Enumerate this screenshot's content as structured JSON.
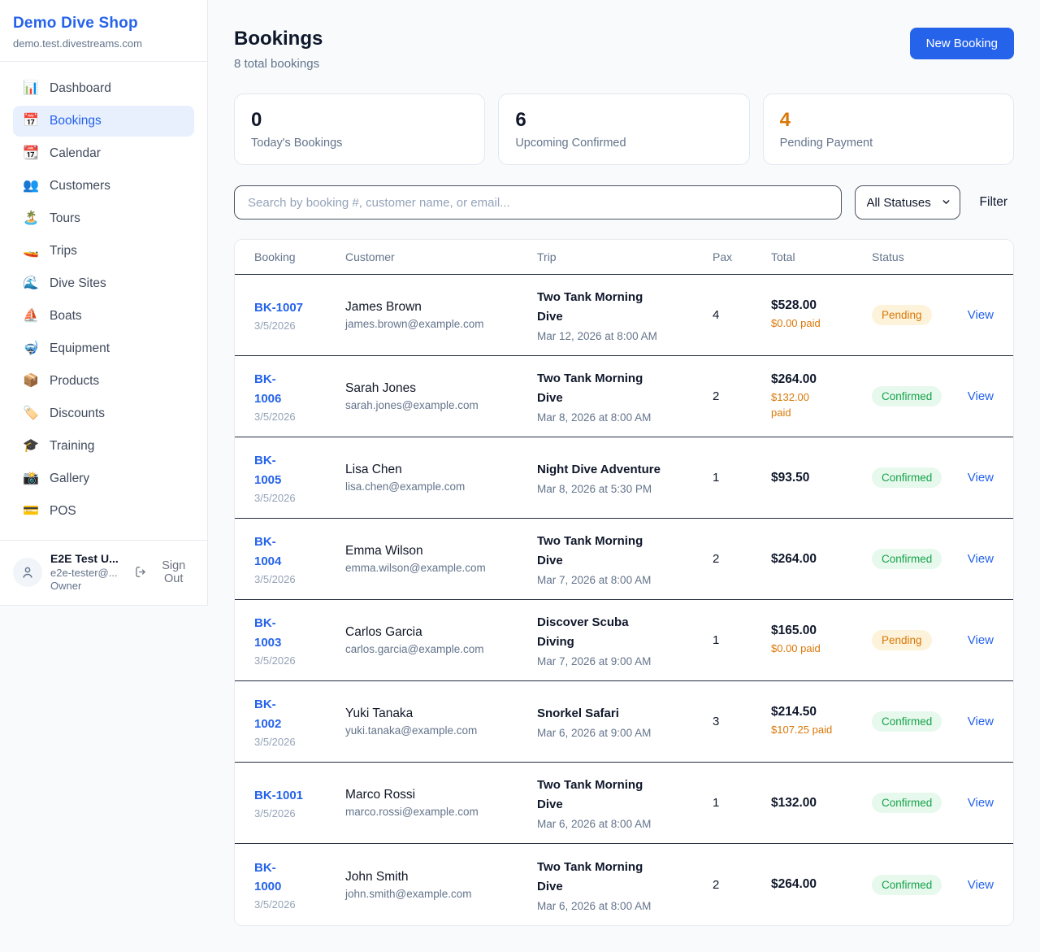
{
  "colors": {
    "accent_blue": "#2563eb",
    "active_nav_bg": "#e8f0fe",
    "pending_text": "#d97706",
    "pending_bg": "#fdf3db",
    "confirmed_text": "#16a34a",
    "confirmed_bg": "#e7f8ed",
    "page_bg": "#f8fafc"
  },
  "sidebar": {
    "brand": {
      "name": "Demo Dive Shop",
      "domain": "demo.test.divestreams.com"
    },
    "items": [
      {
        "label": "Dashboard",
        "icon": "bar-chart-icon",
        "glyph": "📊",
        "active": false
      },
      {
        "label": "Bookings",
        "icon": "calendar-icon",
        "glyph": "📅",
        "active": true
      },
      {
        "label": "Calendar",
        "icon": "tear-off-calendar-icon",
        "glyph": "📆",
        "active": false
      },
      {
        "label": "Customers",
        "icon": "people-icon",
        "glyph": "👥",
        "active": false
      },
      {
        "label": "Tours",
        "icon": "island-icon",
        "glyph": "🏝️",
        "active": false
      },
      {
        "label": "Trips",
        "icon": "speedboat-icon",
        "glyph": "🚤",
        "active": false
      },
      {
        "label": "Dive Sites",
        "icon": "wave-icon",
        "glyph": "🌊",
        "active": false
      },
      {
        "label": "Boats",
        "icon": "sailboat-icon",
        "glyph": "⛵",
        "active": false
      },
      {
        "label": "Equipment",
        "icon": "diving-mask-icon",
        "glyph": "🤿",
        "active": false
      },
      {
        "label": "Products",
        "icon": "package-icon",
        "glyph": "📦",
        "active": false
      },
      {
        "label": "Discounts",
        "icon": "label-tag-icon",
        "glyph": "🏷️",
        "active": false
      },
      {
        "label": "Training",
        "icon": "graduation-cap-icon",
        "glyph": "🎓",
        "active": false
      },
      {
        "label": "Gallery",
        "icon": "camera-icon",
        "glyph": "📸",
        "active": false
      },
      {
        "label": "POS",
        "icon": "credit-card-icon",
        "glyph": "💳",
        "active": false
      }
    ],
    "user": {
      "name": "E2E Test U...",
      "email": "e2e-tester@...",
      "role": "Owner",
      "sign_out_label": "Sign Out"
    }
  },
  "header": {
    "title": "Bookings",
    "subtitle": "8 total bookings",
    "new_booking_label": "New Booking"
  },
  "stats": [
    {
      "value": "0",
      "label": "Today's Bookings",
      "highlight": false
    },
    {
      "value": "6",
      "label": "Upcoming Confirmed",
      "highlight": false
    },
    {
      "value": "4",
      "label": "Pending Payment",
      "highlight": true
    }
  ],
  "filters": {
    "search_placeholder": "Search by booking #, customer name, or email...",
    "status_selected": "All Statuses",
    "filter_label": "Filter"
  },
  "table": {
    "columns": [
      "Booking",
      "Customer",
      "Trip",
      "Pax",
      "Total",
      "Status"
    ],
    "view_label": "View",
    "rows": [
      {
        "id": "BK-1007",
        "date": "3/5/2026",
        "customer": "James Brown",
        "email": "james.brown@example.com",
        "trip": "Two Tank Morning\nDive",
        "trip_datetime": "Mar 12, 2026 at 8:00 AM",
        "pax": "4",
        "total": "$528.00",
        "paid": "$0.00 paid",
        "status": "Pending",
        "view": "View"
      },
      {
        "id": "BK-\n1006",
        "date": "3/5/2026",
        "customer": "Sarah Jones",
        "email": "sarah.jones@example.com",
        "trip": "Two Tank Morning\nDive",
        "trip_datetime": "Mar 8, 2026 at 8:00 AM",
        "pax": "2",
        "total": "$264.00",
        "paid": "$132.00\npaid",
        "status": "Confirmed",
        "view": "View"
      },
      {
        "id": "BK-\n1005",
        "date": "3/5/2026",
        "customer": "Lisa Chen",
        "email": "lisa.chen@example.com",
        "trip": "Night Dive Adventure",
        "trip_datetime": "Mar 8, 2026 at 5:30 PM",
        "pax": "1",
        "total": "$93.50",
        "paid": "",
        "status": "Confirmed",
        "view": "View"
      },
      {
        "id": "BK-\n1004",
        "date": "3/5/2026",
        "customer": "Emma Wilson",
        "email": "emma.wilson@example.com",
        "trip": "Two Tank Morning\nDive",
        "trip_datetime": "Mar 7, 2026 at 8:00 AM",
        "pax": "2",
        "total": "$264.00",
        "paid": "",
        "status": "Confirmed",
        "view": "View"
      },
      {
        "id": "BK-\n1003",
        "date": "3/5/2026",
        "customer": "Carlos Garcia",
        "email": "carlos.garcia@example.com",
        "trip": "Discover Scuba\nDiving",
        "trip_datetime": "Mar 7, 2026 at 9:00 AM",
        "pax": "1",
        "total": "$165.00",
        "paid": "$0.00 paid",
        "status": "Pending",
        "view": "View"
      },
      {
        "id": "BK-\n1002",
        "date": "3/5/2026",
        "customer": "Yuki Tanaka",
        "email": "yuki.tanaka@example.com",
        "trip": "Snorkel Safari",
        "trip_datetime": "Mar 6, 2026 at 9:00 AM",
        "pax": "3",
        "total": "$214.50",
        "paid": "$107.25 paid",
        "status": "Confirmed",
        "view": "View"
      },
      {
        "id": "BK-1001",
        "date": "3/5/2026",
        "customer": "Marco Rossi",
        "email": "marco.rossi@example.com",
        "trip": "Two Tank Morning\nDive",
        "trip_datetime": "Mar 6, 2026 at 8:00 AM",
        "pax": "1",
        "total": "$132.00",
        "paid": "",
        "status": "Confirmed",
        "view": "View"
      },
      {
        "id": "BK-\n1000",
        "date": "3/5/2026",
        "customer": "John Smith",
        "email": "john.smith@example.com",
        "trip": "Two Tank Morning\nDive",
        "trip_datetime": "Mar 6, 2026 at 8:00 AM",
        "pax": "2",
        "total": "$264.00",
        "paid": "",
        "status": "Confirmed",
        "view": "View"
      }
    ]
  }
}
